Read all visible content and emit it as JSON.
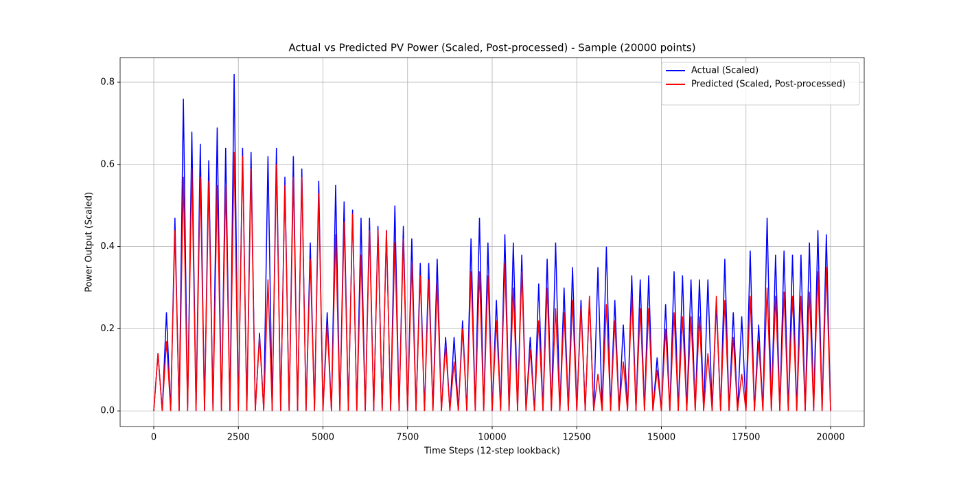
{
  "chart_data": {
    "type": "line",
    "title": "Actual vs Predicted PV Power (Scaled, Post-processed) - Sample (20000 points)",
    "x_label": "Time Steps (12-step lookback)",
    "y_label": "Power Output (Scaled)",
    "xlim": [
      -994,
      20994
    ],
    "ylim": [
      -0.038,
      0.86
    ],
    "xticks": [
      0,
      2500,
      5000,
      7500,
      10000,
      12500,
      15000,
      17500,
      20000
    ],
    "yticks": [
      {
        "value": 0,
        "label": "0.0"
      },
      0.2,
      0.4,
      0.6,
      0.8
    ],
    "grid": true,
    "legend": "upper right",
    "x": [
      0,
      125,
      250,
      375,
      500,
      625,
      750,
      875,
      1000,
      1125,
      1250,
      1375,
      1500,
      1625,
      1750,
      1875,
      2000,
      2125,
      2250,
      2375,
      2500,
      2625,
      2750,
      2875,
      3000,
      3125,
      3250,
      3375,
      3500,
      3625,
      3750,
      3875,
      4000,
      4125,
      4250,
      4375,
      4500,
      4625,
      4750,
      4875,
      5000,
      5125,
      5250,
      5375,
      5500,
      5625,
      5750,
      5875,
      6000,
      6125,
      6250,
      6375,
      6500,
      6625,
      6750,
      6875,
      7000,
      7125,
      7250,
      7375,
      7500,
      7625,
      7750,
      7875,
      8000,
      8125,
      8250,
      8375,
      8500,
      8625,
      8750,
      8875,
      9000,
      9125,
      9250,
      9375,
      9500,
      9625,
      9750,
      9875,
      10000,
      10125,
      10250,
      10375,
      10500,
      10625,
      10750,
      10875,
      11000,
      11125,
      11250,
      11375,
      11500,
      11625,
      11750,
      11875,
      12000,
      12125,
      12250,
      12375,
      12500,
      12625,
      12750,
      12875,
      13000,
      13125,
      13250,
      13375,
      13500,
      13625,
      13750,
      13875,
      14000,
      14125,
      14250,
      14375,
      14500,
      14625,
      14750,
      14875,
      15000,
      15125,
      15250,
      15375,
      15500,
      15625,
      15750,
      15875,
      16000,
      16125,
      16250,
      16375,
      16500,
      16625,
      16750,
      16875,
      17000,
      17125,
      17250,
      17375,
      17500,
      17625,
      17750,
      17875,
      18000,
      18125,
      18250,
      18375,
      18500,
      18625,
      18750,
      18875,
      19000,
      19125,
      19250,
      19375,
      19500,
      19625,
      19750,
      19875,
      20000
    ],
    "series": [
      {
        "name": "Actual (Scaled)",
        "color": "#0000ff",
        "values": [
          0,
          0.14,
          0,
          0.24,
          0,
          0.47,
          0,
          0.76,
          0,
          0.68,
          0,
          0.65,
          0,
          0.61,
          0,
          0.69,
          0,
          0.64,
          0,
          0.82,
          0,
          0.64,
          0,
          0.63,
          0,
          0.19,
          0,
          0.62,
          0,
          0.64,
          0,
          0.57,
          0,
          0.62,
          0,
          0.59,
          0,
          0.41,
          0,
          0.56,
          0,
          0.24,
          0,
          0.55,
          0,
          0.51,
          0,
          0.49,
          0,
          0.47,
          0,
          0.47,
          0,
          0.45,
          0,
          0.44,
          0,
          0.5,
          0,
          0.45,
          0,
          0.42,
          0,
          0.36,
          0,
          0.36,
          0,
          0.37,
          0,
          0.18,
          0,
          0.18,
          0,
          0.22,
          0,
          0.42,
          0,
          0.47,
          0,
          0.41,
          0,
          0.27,
          0,
          0.43,
          0,
          0.41,
          0,
          0.38,
          0,
          0.18,
          0,
          0.31,
          0,
          0.37,
          0,
          0.41,
          0,
          0.3,
          0,
          0.35,
          0,
          0.27,
          0,
          0.27,
          0,
          0.35,
          0,
          0.4,
          0,
          0.27,
          0,
          0.21,
          0,
          0.33,
          0,
          0.32,
          0,
          0.33,
          0,
          0.13,
          0,
          0.26,
          0,
          0.34,
          0,
          0.33,
          0,
          0.32,
          0,
          0.32,
          0,
          0.32,
          0,
          0.26,
          0,
          0.37,
          0,
          0.24,
          0,
          0.23,
          0,
          0.39,
          0,
          0.21,
          0,
          0.47,
          0,
          0.38,
          0,
          0.39,
          0,
          0.38,
          0,
          0.38,
          0,
          0.41,
          0,
          0.44,
          0,
          0.43,
          0
        ]
      },
      {
        "name": "Predicted (Scaled, Post-processed)",
        "color": "#ff0000",
        "values": [
          0,
          0.14,
          0,
          0.17,
          0,
          0.44,
          0,
          0.57,
          0,
          0.59,
          0,
          0.57,
          0,
          0.56,
          0,
          0.55,
          0,
          0.55,
          0,
          0.63,
          0,
          0.62,
          0,
          0.59,
          0,
          0.18,
          0,
          0.32,
          0,
          0.6,
          0,
          0.55,
          0,
          0.57,
          0,
          0.57,
          0,
          0.37,
          0,
          0.53,
          0,
          0.21,
          0,
          0.43,
          0,
          0.46,
          0,
          0.48,
          0,
          0.38,
          0,
          0.44,
          0,
          0.44,
          0,
          0.44,
          0,
          0.41,
          0,
          0.42,
          0,
          0.36,
          0,
          0.33,
          0,
          0.32,
          0,
          0.31,
          0,
          0.16,
          0,
          0.12,
          0,
          0.2,
          0,
          0.34,
          0,
          0.34,
          0,
          0.33,
          0,
          0.22,
          0,
          0.36,
          0,
          0.3,
          0,
          0.34,
          0,
          0.15,
          0,
          0.22,
          0,
          0.3,
          0,
          0.25,
          0,
          0.24,
          0,
          0.27,
          0,
          0.25,
          0,
          0.28,
          0,
          0.09,
          0,
          0.26,
          0,
          0.22,
          0,
          0.12,
          0,
          0.28,
          0,
          0.25,
          0,
          0.25,
          0,
          0.1,
          0,
          0.2,
          0,
          0.24,
          0,
          0.23,
          0,
          0.23,
          0,
          0.23,
          0,
          0.14,
          0,
          0.28,
          0,
          0.27,
          0,
          0.18,
          0,
          0.09,
          0,
          0.28,
          0,
          0.17,
          0,
          0.3,
          0,
          0.28,
          0,
          0.29,
          0,
          0.28,
          0,
          0.28,
          0,
          0.29,
          0,
          0.34,
          0,
          0.35,
          0
        ]
      }
    ]
  }
}
